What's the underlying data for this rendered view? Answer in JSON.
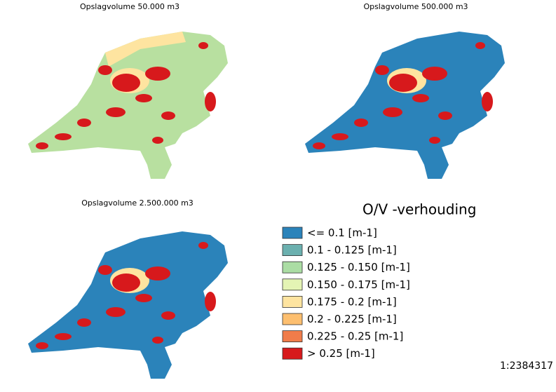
{
  "maps": [
    {
      "title": "Opslagvolume 50.000  m3"
    },
    {
      "title": "Opslagvolume 500.000  m3"
    },
    {
      "title": "Opslagvolume 2.500.000 m3"
    }
  ],
  "legend": {
    "title": "O/V -verhouding",
    "items": [
      {
        "label": "<= 0.1 [m-1]",
        "color": "#2b83ba"
      },
      {
        "label": "0.1 - 0.125 [m-1]",
        "color": "#6bb0af"
      },
      {
        "label": "0.125 - 0.150 [m-1]",
        "color": "#abdda4"
      },
      {
        "label": "0.150 - 0.175 [m-1]",
        "color": "#e4f4b4"
      },
      {
        "label": "0.175 - 0.2 [m-1]",
        "color": "#fee4a0"
      },
      {
        "label": "0.2 - 0.225 [m-1]",
        "color": "#fdbf6f"
      },
      {
        "label": "0.225 - 0.25 [m-1]",
        "color": "#f07c4a"
      },
      {
        "label": "> 0.25 [m-1]",
        "color": "#d7191c"
      }
    ]
  },
  "scale": "1:2384317"
}
